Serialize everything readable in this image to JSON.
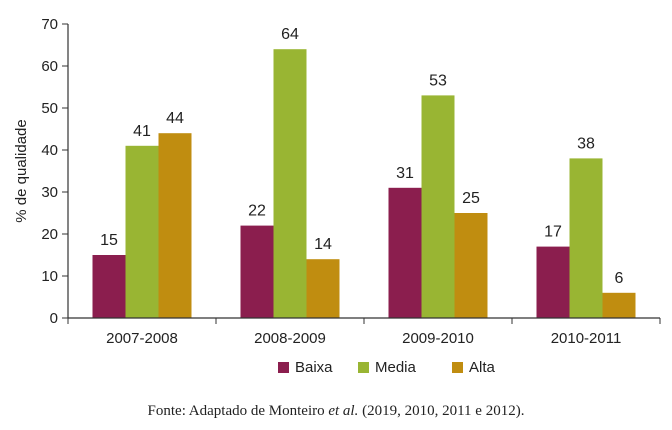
{
  "chart_data": {
    "type": "bar",
    "ylabel": "% de qualidade",
    "xlabel": "",
    "ylim": [
      0,
      70
    ],
    "yticks": [
      0,
      10,
      20,
      30,
      40,
      50,
      60,
      70
    ],
    "categories": [
      "2007-2008",
      "2008-2009",
      "2009-2010",
      "2010-2011"
    ],
    "series": [
      {
        "name": "Baixa",
        "color": "#8b1e4e",
        "values": [
          15,
          22,
          31,
          17
        ]
      },
      {
        "name": "Media",
        "color": "#99b533",
        "values": [
          41,
          64,
          53,
          38
        ]
      },
      {
        "name": "Alta",
        "color": "#c08d10",
        "values": [
          44,
          14,
          25,
          6
        ]
      }
    ],
    "legend": "bottom",
    "grid": false,
    "show_data_labels": true
  },
  "caption": {
    "prefix": "Fonte: Adaptado de Monteiro ",
    "italic": "et al.",
    "suffix": " (2019, 2010, 2011 e 2012)."
  }
}
